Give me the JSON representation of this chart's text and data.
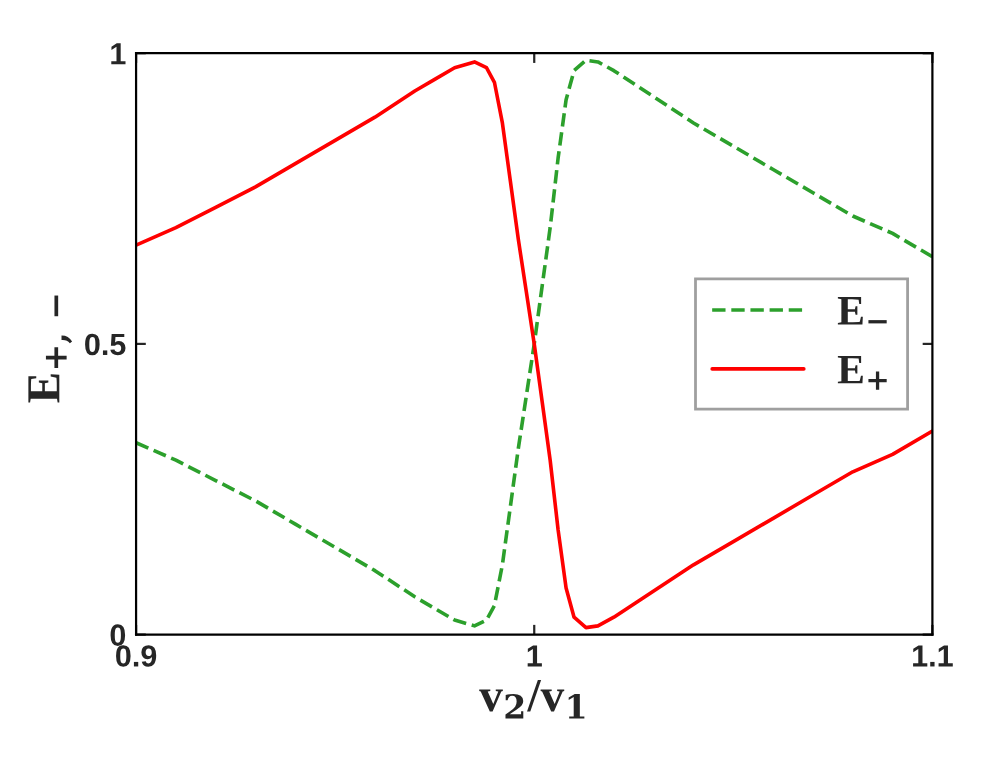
{
  "chart_data": {
    "type": "line",
    "xlabel": "v$_{2}$/v$_{1}$",
    "ylabel": "E$_{+,−}$",
    "xlim": [
      0.9,
      1.1
    ],
    "xticks": [
      0.9,
      {
        "value": 1.0,
        "label": "1"
      },
      1.1
    ],
    "ylim": [
      0,
      1
    ],
    "yticks": [
      0,
      0.5,
      1
    ],
    "grid": false,
    "legend": "right",
    "x": [
      0.9,
      0.91,
      0.92,
      0.93,
      0.94,
      0.95,
      0.96,
      0.97,
      0.975,
      0.98,
      0.985,
      0.988,
      0.99,
      0.992,
      0.994,
      0.996,
      0.998,
      1.0,
      1.002,
      1.004,
      1.006,
      1.008,
      1.01,
      1.013,
      1.016,
      1.02,
      1.03,
      1.04,
      1.05,
      1.06,
      1.07,
      1.08,
      1.09,
      1.1
    ],
    "series": [
      {
        "name": "E$_{−}$",
        "color": "#2ca02c",
        "line_style": "dashed",
        "values": [
          0.33,
          0.3,
          0.265,
          0.23,
          0.19,
          0.15,
          0.11,
          0.065,
          0.045,
          0.025,
          0.015,
          0.025,
          0.05,
          0.12,
          0.22,
          0.32,
          0.41,
          0.5,
          0.6,
          0.7,
          0.82,
          0.92,
          0.97,
          0.988,
          0.985,
          0.97,
          0.925,
          0.88,
          0.84,
          0.8,
          0.76,
          0.72,
          0.69,
          0.65
        ]
      },
      {
        "name": "E$_{+}$",
        "color": "#ff0000",
        "line_style": "solid",
        "values": [
          0.67,
          0.7,
          0.735,
          0.77,
          0.81,
          0.85,
          0.89,
          0.935,
          0.955,
          0.975,
          0.985,
          0.975,
          0.95,
          0.88,
          0.78,
          0.68,
          0.59,
          0.5,
          0.4,
          0.3,
          0.18,
          0.08,
          0.03,
          0.012,
          0.015,
          0.03,
          0.075,
          0.12,
          0.16,
          0.2,
          0.24,
          0.28,
          0.31,
          0.35
        ]
      }
    ]
  }
}
